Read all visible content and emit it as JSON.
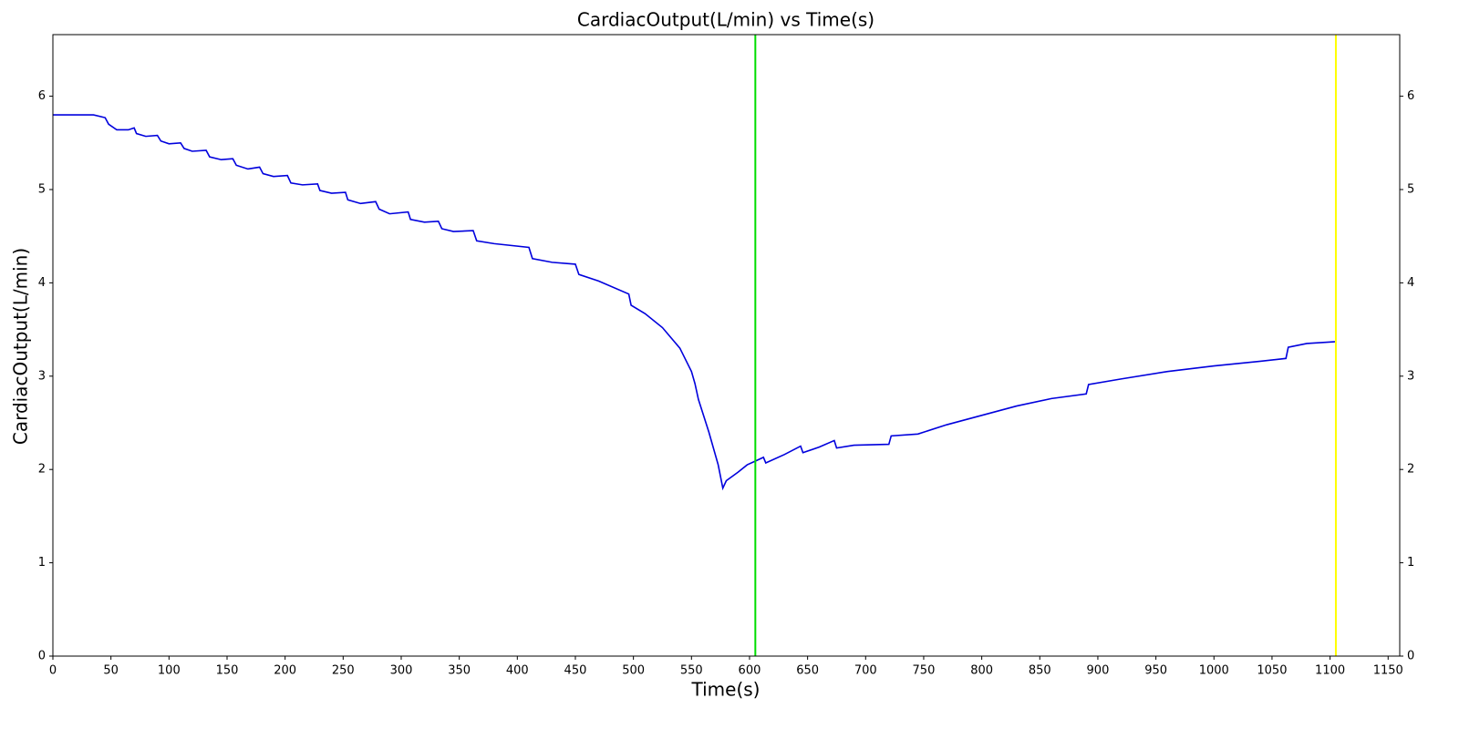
{
  "chart_data": {
    "type": "line",
    "title": "CardiacOutput(L/min) vs Time(s)",
    "x_label": "Time(s)",
    "y_label": "CardiacOutput(L/min)",
    "x": [
      0,
      35,
      45,
      48,
      55,
      65,
      70,
      72,
      80,
      90,
      93,
      100,
      110,
      113,
      120,
      132,
      135,
      145,
      155,
      158,
      168,
      178,
      181,
      190,
      202,
      205,
      215,
      228,
      230,
      240,
      252,
      254,
      265,
      278,
      281,
      290,
      306,
      308,
      320,
      332,
      335,
      345,
      362,
      365,
      380,
      410,
      413,
      430,
      450,
      453,
      470,
      496,
      498,
      510,
      525,
      540,
      550,
      553,
      556,
      565,
      573,
      577,
      580,
      590,
      598,
      605,
      612,
      614,
      630,
      644,
      646,
      660,
      673,
      675,
      690,
      720,
      722,
      745,
      770,
      800,
      830,
      860,
      890,
      892,
      920,
      960,
      1000,
      1040,
      1062,
      1064,
      1080,
      1105
    ],
    "series": [
      {
        "name": "CardiacOutput(L/min)",
        "color": "#0000dd",
        "values": [
          5.8,
          5.8,
          5.77,
          5.7,
          5.64,
          5.64,
          5.66,
          5.6,
          5.57,
          5.58,
          5.52,
          5.49,
          5.5,
          5.44,
          5.41,
          5.42,
          5.35,
          5.32,
          5.33,
          5.26,
          5.22,
          5.24,
          5.17,
          5.14,
          5.15,
          5.07,
          5.05,
          5.06,
          4.99,
          4.96,
          4.97,
          4.89,
          4.85,
          4.87,
          4.79,
          4.74,
          4.76,
          4.68,
          4.65,
          4.66,
          4.58,
          4.55,
          4.56,
          4.45,
          4.42,
          4.38,
          4.26,
          4.22,
          4.2,
          4.09,
          4.02,
          3.88,
          3.76,
          3.67,
          3.52,
          3.3,
          3.05,
          2.92,
          2.75,
          2.4,
          2.05,
          1.8,
          1.88,
          1.97,
          2.05,
          2.09,
          2.13,
          2.07,
          2.16,
          2.25,
          2.18,
          2.24,
          2.31,
          2.23,
          2.26,
          2.27,
          2.36,
          2.38,
          2.48,
          2.58,
          2.68,
          2.76,
          2.81,
          2.91,
          2.97,
          3.05,
          3.11,
          3.16,
          3.19,
          3.31,
          3.35,
          3.37
        ]
      }
    ],
    "vlines": [
      {
        "x": 605,
        "color": "#00dd00"
      },
      {
        "x": 1105,
        "color": "#ffff00"
      }
    ],
    "xlim": [
      0,
      1160
    ],
    "xticks": [
      0,
      50,
      100,
      150,
      200,
      250,
      300,
      350,
      400,
      450,
      500,
      550,
      600,
      650,
      700,
      750,
      800,
      850,
      900,
      950,
      1000,
      1050,
      1100,
      1150
    ],
    "ylim": [
      0,
      6.66
    ],
    "yticks": [
      0,
      1,
      2,
      3,
      4,
      5,
      6
    ],
    "y2lim": [
      0,
      6.66
    ],
    "y2ticks": [
      0,
      1,
      2,
      3,
      4,
      5,
      6
    ]
  }
}
